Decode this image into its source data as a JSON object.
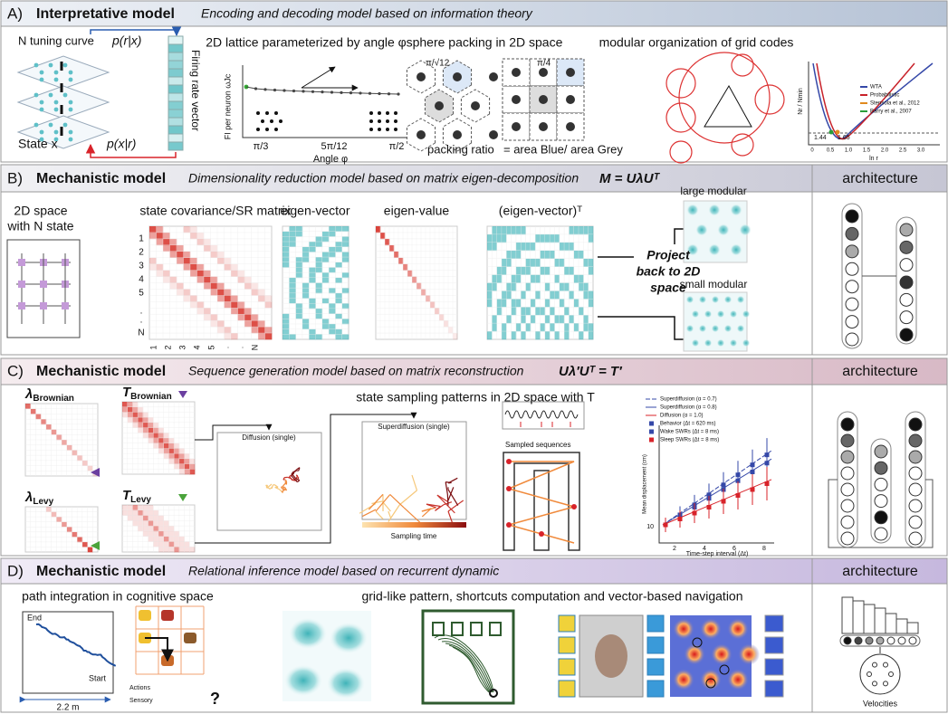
{
  "panel_a": {
    "label": "A)",
    "title": "Interpretative model",
    "subtitle": "Encoding and decoding model based on information theory",
    "tuning": "N tuning curve",
    "p_r_x": "p(r|x)",
    "firing": "Firing rate vector",
    "state": "State x",
    "p_x_r": "p(x|r)",
    "lattice_title": "2D lattice parameterized by angle φ",
    "lattice_ylabel": "FI per neuron ωJc",
    "lattice_xlabel": "Angle φ",
    "lattice_xticks": [
      "π/3",
      "5π/12",
      "π/2"
    ],
    "packing_title": "sphere packing in 2D space",
    "packing_hex": "π/√12",
    "packing_sq": "π/4",
    "packing_ratio": "packing ratio",
    "packing_formula": "= area Blue/ area Grey",
    "modular_title": "modular organization of grid codes",
    "modular_legend": [
      "WTA",
      "Probabilistic",
      "Stensola et al., 2012",
      "Barry et al., 2007"
    ],
    "modular_xlabel": "ln r",
    "modular_ylabel": "Nr / Nmin",
    "modular_xticks": [
      "0",
      "0.5",
      "1.0",
      "1.5",
      "2.0",
      "2.5",
      "3.0"
    ],
    "modular_marks": [
      "1.44",
      "1.65"
    ]
  },
  "panel_b": {
    "label": "B)",
    "title": "Mechanistic model",
    "subtitle": "Dimensionality reduction model based on matrix eigen-decomposition",
    "equation": "M = UλUᵀ",
    "space_title": [
      "2D space",
      "with N state"
    ],
    "cov_title": "state covariance/SR matrix",
    "cov_labels": [
      "1",
      "2",
      "3",
      "4",
      "5",
      ".",
      ".",
      "N"
    ],
    "eigvec_title": "eigen-vector",
    "eigval_title": "eigen-value",
    "eigvect_title": "(eigen-vector)ᵀ",
    "large": "large modular",
    "small": "small modular",
    "project": [
      "Project",
      "back to 2D",
      "space"
    ],
    "architecture": "architecture"
  },
  "panel_c": {
    "label": "C)",
    "title": "Mechanistic model",
    "subtitle": "Sequence generation model based on matrix reconstruction",
    "equation": "Uλ′Uᵀ = T′",
    "matrices": [
      {
        "symbol": "λ",
        "sub": "Brownian"
      },
      {
        "symbol": "T",
        "sub": "Brownian"
      },
      {
        "symbol": "λ",
        "sub": "Levy"
      },
      {
        "symbol": "T",
        "sub": "Levy"
      }
    ],
    "sampling_title": "state sampling patterns in 2D space with T",
    "diffusion": "Diffusion (single)",
    "superdiffusion": "Superdiffusion (single)",
    "sampling_time": "Sampling time",
    "sequences": "Sampled sequences",
    "plot_legend": [
      "Superdiffusion (α = 0.7)",
      "Superdiffusion (α = 0.8)",
      "Diffusion (α = 1.0)",
      "Behavior (Δt = 620 ms)",
      "Wake SWRs (Δt = 8 ms)",
      "Sleep SWRs (Δt = 8 ms)"
    ],
    "plot_ylabel": "Mean displacement (cm)",
    "plot_xlabel": "Time-step interval (Δt)",
    "plot_xticks": [
      "2",
      "4",
      "6",
      "8"
    ],
    "plot_ytick": "10",
    "architecture": "architecture"
  },
  "panel_d": {
    "label": "D)",
    "title": "Mechanistic model",
    "subtitle": "Relational inference model based on recurrent dynamic",
    "path_title": "path integration in cognitive space",
    "grid_title": "grid-like pattern, shortcuts computation and vector-based navigation",
    "end": "End",
    "start": "Start",
    "scale": "2.2 m",
    "actions": "Actions",
    "sensory": "Sensory",
    "question": "?",
    "velocities": "Velocities",
    "architecture": "architecture"
  }
}
